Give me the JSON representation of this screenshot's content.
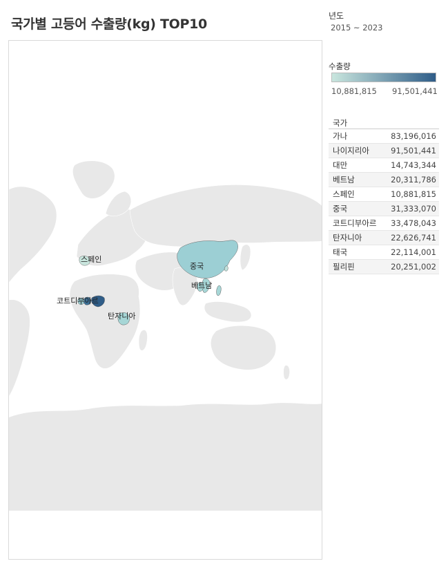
{
  "title": "국가별 고등어 수출량(kg) TOP10",
  "filter": {
    "label": "년도",
    "value": "2015 ~ 2023"
  },
  "legend": {
    "title": "수출량",
    "min": "10,881,815",
    "max": "91,501,441",
    "color_low": "#c9e6de",
    "color_high": "#2f5d88"
  },
  "table": {
    "header": "국가",
    "rows": [
      {
        "country": "가나",
        "value": "83,196,016"
      },
      {
        "country": "나이지리아",
        "value": "91,501,441"
      },
      {
        "country": "대만",
        "value": "14,743,344"
      },
      {
        "country": "베트남",
        "value": "20,311,786"
      },
      {
        "country": "스페인",
        "value": "10,881,815"
      },
      {
        "country": "중국",
        "value": "31,333,070"
      },
      {
        "country": "코트디부아르",
        "value": "33,478,043"
      },
      {
        "country": "탄자니아",
        "value": "22,626,741"
      },
      {
        "country": "태국",
        "value": "22,114,001"
      },
      {
        "country": "필리핀",
        "value": "20,251,002"
      }
    ]
  },
  "chart_data": {
    "type": "map",
    "title": "국가별 고등어 수출량(kg) TOP10",
    "color_scale": {
      "min": 10881815,
      "max": 91501441
    },
    "countries": [
      {
        "name": "가나",
        "value": 83196016
      },
      {
        "name": "나이지리아",
        "value": 91501441
      },
      {
        "name": "대만",
        "value": 14743344
      },
      {
        "name": "베트남",
        "value": 20311786
      },
      {
        "name": "스페인",
        "value": 10881815
      },
      {
        "name": "중국",
        "value": 31333070
      },
      {
        "name": "코트디부아르",
        "value": 33478043
      },
      {
        "name": "탄자니아",
        "value": 22626741
      },
      {
        "name": "태국",
        "value": 22114001
      },
      {
        "name": "필리핀",
        "value": 20251002
      }
    ],
    "map_labels": [
      "스페인",
      "중국",
      "베트남",
      "코트디부아르",
      "탄자니아"
    ]
  }
}
